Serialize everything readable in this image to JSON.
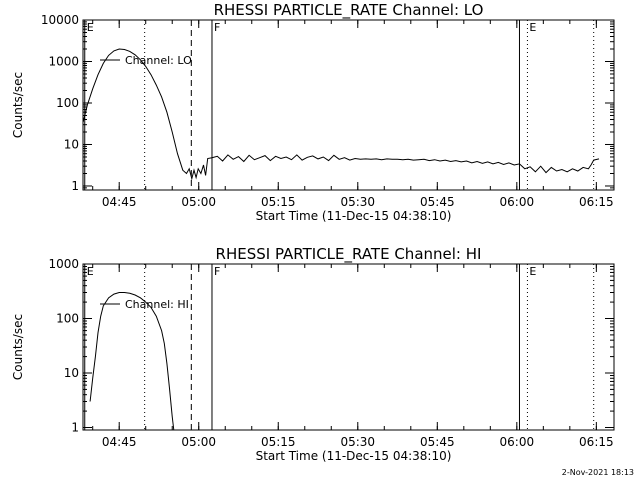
{
  "footer": {
    "timestamp": "2-Nov-2021 18:13"
  },
  "chart_data": [
    {
      "type": "line",
      "title": "RHESSI PARTICLE_RATE Channel: LO",
      "ylabel": "Counts/sec",
      "xlabel": "Start Time (11-Dec-15 04:38:10)",
      "yscale": "log",
      "ylim": [
        0.8,
        10000
      ],
      "xlim_minutes": [
        38.17,
        138.33
      ],
      "x_ticks": [
        {
          "min": 45,
          "label": "04:45"
        },
        {
          "min": 60,
          "label": "05:00"
        },
        {
          "min": 75,
          "label": "05:15"
        },
        {
          "min": 90,
          "label": "05:30"
        },
        {
          "min": 105,
          "label": "05:45"
        },
        {
          "min": 120,
          "label": "06:00"
        },
        {
          "min": 135,
          "label": "06:15"
        }
      ],
      "y_ticks": [
        {
          "value": 1,
          "label": "1"
        },
        {
          "value": 10,
          "label": "10"
        },
        {
          "value": 100,
          "label": "100"
        },
        {
          "value": 1000,
          "label": "1000"
        },
        {
          "value": 10000,
          "label": "10000"
        }
      ],
      "markers": [
        {
          "min": 38.5,
          "label": "E",
          "style": "solid"
        },
        {
          "min": 49.8,
          "label": "",
          "style": "dotted"
        },
        {
          "min": 58.6,
          "label": "",
          "style": "dashed"
        },
        {
          "min": 62.5,
          "label": "F",
          "style": "solid"
        },
        {
          "min": 120.5,
          "label": "",
          "style": "solid"
        },
        {
          "min": 122.0,
          "label": "E",
          "style": "dotted"
        },
        {
          "min": 134.5,
          "label": "",
          "style": "dotted"
        }
      ],
      "legend": {
        "label": "Channel: LO",
        "position": "top-left"
      },
      "series": [
        {
          "name": "Channel: LO",
          "x": [
            38.2,
            39,
            40,
            41,
            42,
            43,
            44,
            45,
            46,
            47,
            48,
            49,
            50,
            51,
            52,
            53,
            54,
            55,
            56,
            57,
            57.7,
            58.2,
            58.7,
            59.1,
            59.5,
            59.9,
            60.4,
            60.9,
            61.3,
            61.7,
            62.5,
            63.5,
            64.5,
            65.5,
            66.5,
            67.5,
            68.5,
            69.5,
            70.5,
            71.5,
            72.5,
            73.5,
            74.5,
            75.5,
            76.5,
            77.5,
            78.5,
            79.5,
            80.5,
            81.5,
            82.5,
            83.5,
            84.5,
            85.5,
            86.5,
            87.5,
            88.5,
            89.5,
            90.5,
            91.5,
            92.5,
            93.5,
            94.5,
            95.5,
            96.5,
            97.5,
            98.5,
            99.5,
            100.5,
            101.5,
            102.5,
            103.5,
            104.5,
            105.5,
            106.5,
            107.5,
            108.5,
            109.5,
            110.5,
            111.5,
            112.5,
            113.5,
            114.5,
            115.5,
            116.5,
            117.5,
            118.5,
            119.5,
            120.5,
            121.5,
            122.5,
            123.5,
            124.5,
            125.5,
            126.5,
            127.5,
            128.5,
            129.5,
            130.5,
            131.5,
            132.5,
            133.5,
            134,
            134.5,
            135.5
          ],
          "values": [
            35,
            90,
            220,
            480,
            900,
            1400,
            1800,
            2000,
            1950,
            1750,
            1450,
            1100,
            760,
            480,
            270,
            140,
            60,
            20,
            6,
            2.4,
            2.0,
            2.6,
            1.5,
            2.4,
            1.6,
            2.6,
            2.0,
            3.2,
            1.8,
            4.6,
            4.8,
            5.2,
            4.0,
            5.6,
            4.4,
            5.1,
            3.9,
            5.5,
            4.3,
            4.8,
            5.4,
            4.1,
            5.2,
            4.6,
            5.0,
            4.3,
            5.6,
            4.2,
            4.9,
            5.3,
            4.5,
            5.0,
            4.1,
            5.5,
            4.4,
            4.8,
            4.2,
            4.6,
            4.4,
            4.5,
            4.4,
            4.5,
            4.3,
            4.5,
            4.4,
            4.4,
            4.3,
            4.4,
            4.2,
            4.3,
            4.4,
            4.1,
            4.3,
            4.0,
            4.2,
            3.9,
            4.1,
            3.8,
            4.0,
            3.6,
            3.9,
            3.5,
            3.8,
            3.4,
            3.7,
            3.3,
            3.6,
            3.2,
            3.4,
            2.6,
            2.9,
            2.2,
            3.0,
            2.1,
            2.8,
            2.3,
            2.5,
            2.2,
            2.6,
            2.3,
            2.8,
            2.6,
            3.2,
            4.2,
            4.5
          ]
        }
      ]
    },
    {
      "type": "line",
      "title": "RHESSI PARTICLE_RATE Channel: HI",
      "ylabel": "Counts/sec",
      "xlabel": "Start Time (11-Dec-15 04:38:10)",
      "yscale": "log",
      "ylim": [
        0.9,
        1000
      ],
      "xlim_minutes": [
        38.17,
        138.33
      ],
      "x_ticks": [
        {
          "min": 45,
          "label": "04:45"
        },
        {
          "min": 60,
          "label": "05:00"
        },
        {
          "min": 75,
          "label": "05:15"
        },
        {
          "min": 90,
          "label": "05:30"
        },
        {
          "min": 105,
          "label": "05:45"
        },
        {
          "min": 120,
          "label": "06:00"
        },
        {
          "min": 135,
          "label": "06:15"
        }
      ],
      "y_ticks": [
        {
          "value": 1,
          "label": "1"
        },
        {
          "value": 10,
          "label": "10"
        },
        {
          "value": 100,
          "label": "100"
        },
        {
          "value": 1000,
          "label": "1000"
        }
      ],
      "markers": [
        {
          "min": 38.5,
          "label": "E",
          "style": "solid"
        },
        {
          "min": 49.8,
          "label": "",
          "style": "dotted"
        },
        {
          "min": 58.6,
          "label": "",
          "style": "dashed"
        },
        {
          "min": 62.5,
          "label": "F",
          "style": "solid"
        },
        {
          "min": 120.5,
          "label": "",
          "style": "solid"
        },
        {
          "min": 122.0,
          "label": "E",
          "style": "dotted"
        },
        {
          "min": 134.5,
          "label": "",
          "style": "dotted"
        }
      ],
      "legend": {
        "label": "Channel: HI",
        "position": "top-left"
      },
      "series": [
        {
          "name": "Channel: HI",
          "x": [
            39.5,
            40,
            40.5,
            41,
            41.5,
            42,
            43,
            44,
            45,
            46,
            47,
            48,
            49,
            50,
            51,
            52,
            53,
            53.5,
            54,
            54.5,
            55,
            55.3
          ],
          "values": [
            3,
            8,
            20,
            55,
            110,
            170,
            240,
            280,
            300,
            300,
            290,
            270,
            240,
            200,
            160,
            110,
            60,
            35,
            15,
            5,
            1.6,
            0.9
          ]
        }
      ]
    }
  ]
}
